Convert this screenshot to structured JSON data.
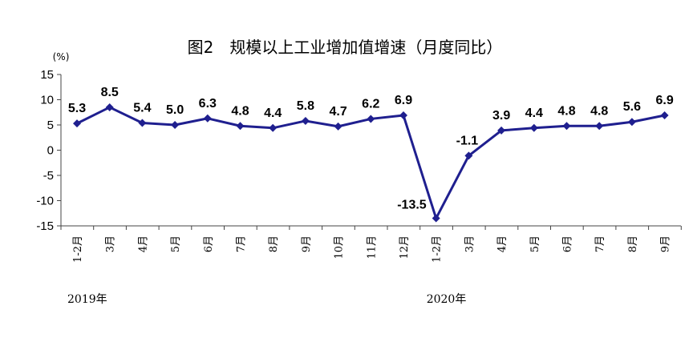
{
  "chart_data": {
    "type": "line",
    "title": "图2　规模以上工业增加值增速（月度同比）",
    "y_unit": "(%)",
    "ylim": [
      -15,
      15
    ],
    "y_ticks": [
      "15",
      "10",
      "5",
      "0",
      "-5",
      "-10",
      "-15"
    ],
    "categories": [
      "1-2月",
      "3月",
      "4月",
      "5月",
      "6月",
      "7月",
      "8月",
      "9月",
      "10月",
      "11月",
      "12月",
      "1-2月",
      "3月",
      "4月",
      "5月",
      "6月",
      "7月",
      "8月",
      "9月"
    ],
    "year_labels": [
      "2019年",
      "2020年"
    ],
    "series": [
      {
        "values": [
          5.3,
          8.5,
          5.4,
          5.0,
          6.3,
          4.8,
          4.4,
          5.8,
          4.7,
          6.2,
          6.9,
          -13.5,
          -1.1,
          3.9,
          4.4,
          4.8,
          4.8,
          5.6,
          6.9
        ],
        "labels": [
          "5.3",
          "8.5",
          "5.4",
          "5.0",
          "6.3",
          "4.8",
          "4.4",
          "5.8",
          "4.7",
          "6.2",
          "6.9",
          "-13.5",
          "-1.1",
          "3.9",
          "4.4",
          "4.8",
          "4.8",
          "5.6",
          "6.9"
        ],
        "color": "#1f1f8f"
      }
    ],
    "grid": false,
    "legend": "none"
  }
}
